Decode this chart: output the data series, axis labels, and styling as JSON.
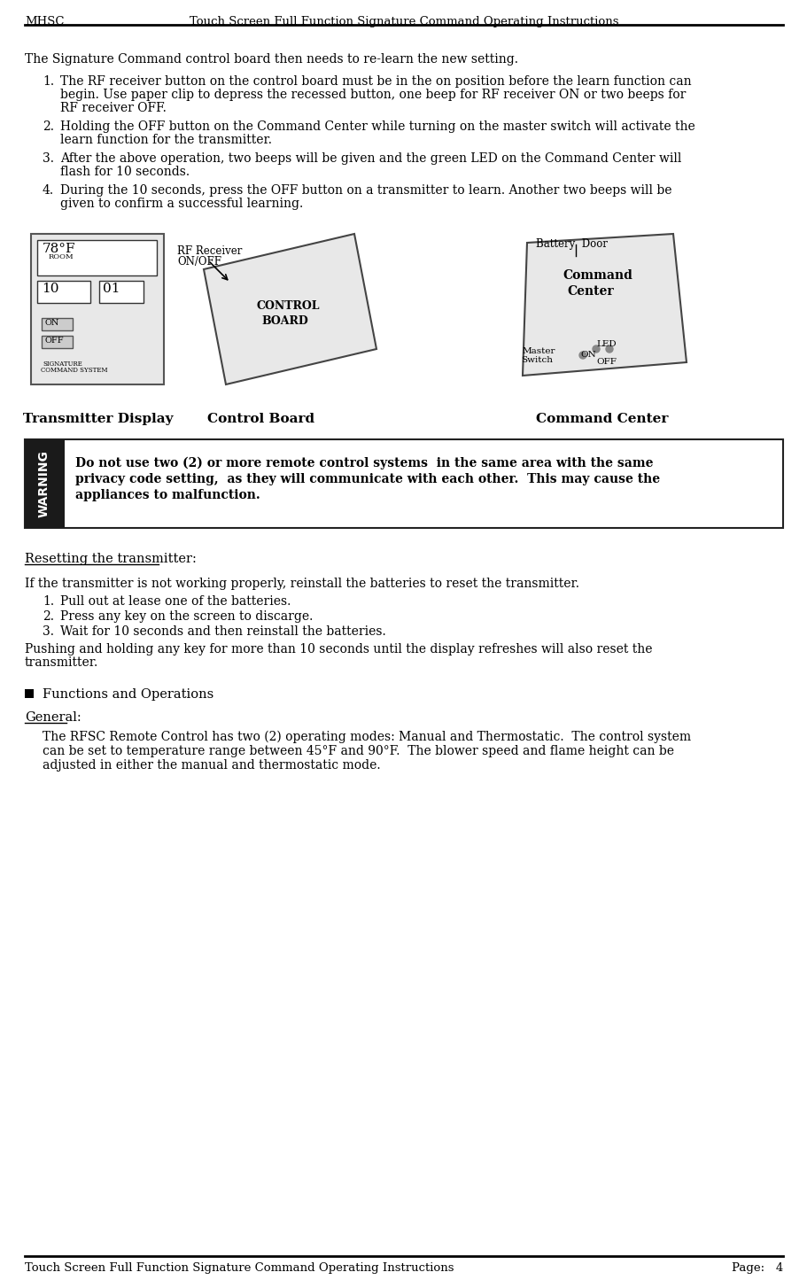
{
  "header_left": "MHSC",
  "header_right": "Touch Screen Full Function Signature Command Operating Instructions",
  "footer_left": "Touch Screen Full Function Signature Command Operating Instructions",
  "footer_right": "Page:   4",
  "bg_color": "#ffffff",
  "text_color": "#000000",
  "header_line_color": "#000000",
  "footer_line_color": "#000000",
  "intro_text": "The Signature Command control board then needs to re-learn the new setting.",
  "list_items": [
    "The RF receiver button on the control board must be in the on position before the learn function can\nbegin. Use paper clip to depress the recessed button, one beep for RF receiver ON or two beeps for\nRF receiver OFF.",
    "Holding the OFF button on the Command Center while turning on the master switch will activate the\nlearn function for the transmitter.",
    "After the above operation, two beeps will be given and the green LED on the Command Center will\nflash for 10 seconds.",
    "During the 10 seconds, press the OFF button on a transmitter to learn. Another two beeps will be\ngiven to confirm a successful learning."
  ],
  "image_labels": [
    "Transmitter Display",
    "Control Board",
    "Command Center"
  ],
  "warning_title": "WARNING",
  "warning_text": "Do not use two (2) or more remote control systems  in the same area with the same\nprivacy code setting,  as they will communicate with each other.  This may cause the\nappliances to malfunction.",
  "reset_underline": "Resetting the transmitter:",
  "reset_intro": "If the transmitter is not working properly, reinstall the batteries to reset the transmitter.",
  "reset_items": [
    "Pull out at lease one of the batteries.",
    "Press any key on the screen to discarge.",
    "Wait for 10 seconds and then reinstall the batteries."
  ],
  "reset_extra": "Pushing and holding any key for more than 10 seconds until the display refreshes will also reset the\ntransmitter.",
  "bullet_section": "Functions and Operations",
  "general_underline": "General:",
  "general_text": "The RFSC Remote Control has two (2) operating modes: Manual and Thermostatic.  The control system\ncan be set to temperature range between 45°F and 90°F.  The blower speed and flame height can be\nadjusted in either the manual and thermostatic mode."
}
